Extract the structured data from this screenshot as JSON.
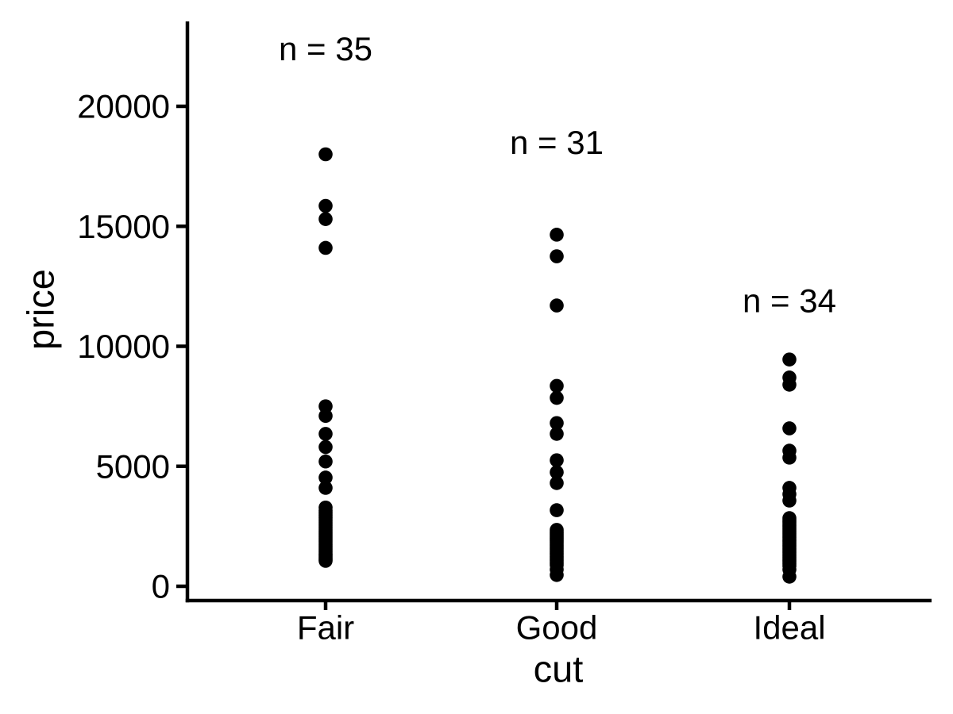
{
  "figure": {
    "background_color": "#ffffff",
    "foreground_color": "#000000"
  },
  "chart_data": {
    "type": "scatter",
    "subtype": "strip-plot",
    "title": "",
    "xlabel": "cut",
    "ylabel": "price",
    "categories": [
      "Fair",
      "Good",
      "Ideal"
    ],
    "ytick_values": [
      0,
      5000,
      10000,
      15000,
      20000
    ],
    "ytick_labels": [
      "0",
      "5000",
      "10000",
      "15000",
      "20000"
    ],
    "ylim": [
      0,
      23500
    ],
    "grid": "off",
    "legend": "none",
    "point_color": "#000000",
    "axis_color": "#000000",
    "series": [
      {
        "name": "Fair",
        "n": 35,
        "annotation_label": "n = 35",
        "annotation_y": 22400,
        "prices": [
          18000,
          15850,
          15300,
          14100,
          7500,
          7100,
          6350,
          5800,
          5200,
          4530,
          4100,
          3280,
          3150,
          3050,
          2950,
          2850,
          2750,
          2650,
          2550,
          2450,
          2350,
          2250,
          2150,
          2050,
          1950,
          1850,
          1750,
          1650,
          1550,
          1450,
          1350,
          1280,
          1200,
          1130,
          1060
        ]
      },
      {
        "name": "Good",
        "n": 31,
        "annotation_label": "n = 31",
        "annotation_y": 18500,
        "prices": [
          14650,
          13750,
          11700,
          8350,
          7850,
          6800,
          6350,
          5250,
          4750,
          4300,
          3170,
          2350,
          2270,
          2190,
          2110,
          2030,
          1950,
          1870,
          1790,
          1700,
          1610,
          1520,
          1430,
          1340,
          1250,
          1160,
          1070,
          980,
          890,
          700,
          470
        ]
      },
      {
        "name": "Ideal",
        "n": 34,
        "annotation_label": "n = 34",
        "annotation_y": 11900,
        "prices": [
          9450,
          8700,
          8400,
          6580,
          5650,
          5360,
          4100,
          3840,
          3570,
          2840,
          2750,
          2660,
          2570,
          2480,
          2390,
          2300,
          2210,
          2120,
          2030,
          1940,
          1850,
          1760,
          1670,
          1580,
          1490,
          1400,
          1310,
          1220,
          1130,
          1040,
          950,
          850,
          700,
          400
        ]
      }
    ]
  }
}
